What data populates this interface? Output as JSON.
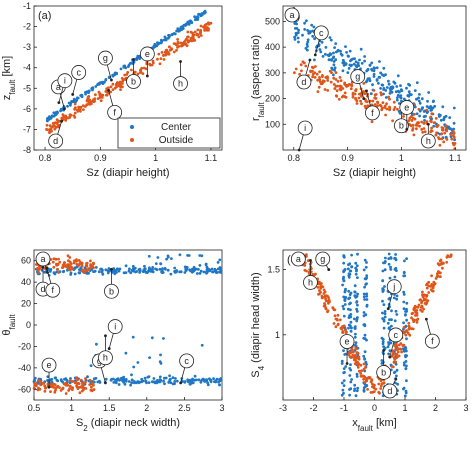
{
  "colors": {
    "center": "#1f77c4",
    "outside": "#e0561a"
  },
  "chart_data": [
    {
      "id": "a",
      "type": "scatter",
      "panel_label": "(a)",
      "xlabel": "Sz (diapir height)",
      "ylabel": "z_fault [km]",
      "ylabel_main": "z",
      "ylabel_sub": "fault",
      "ylabel_unit": " [km]",
      "xlim": [
        0.78,
        1.12
      ],
      "ylim": [
        -8,
        -1
      ],
      "xticks": [
        0.8,
        0.9,
        1.0,
        1.1
      ],
      "xticklabels": [
        "0.8",
        "0.9",
        "1",
        "1.1"
      ],
      "yticks": [
        -8,
        -7,
        -6,
        -5,
        -4,
        -3,
        -2,
        -1
      ],
      "yticklabels": [
        "-8",
        "-7",
        "-6",
        "-5",
        "-4",
        "-3",
        "-2",
        "-1"
      ],
      "legend": {
        "position": "bottom-right",
        "entries": [
          "Center",
          "Outside"
        ]
      },
      "series": [
        {
          "name": "Center",
          "color_key": "center",
          "trend": [
            [
              0.8,
              -6.6
            ],
            [
              1.1,
              -1.1
            ]
          ],
          "spread": 0.08,
          "n": 220
        },
        {
          "name": "Outside",
          "color_key": "outside",
          "trend": [
            [
              0.8,
              -7.1
            ],
            [
              1.1,
              -1.9
            ]
          ],
          "spread": 0.25,
          "n": 260
        }
      ],
      "annotations": [
        {
          "letter": "a",
          "x": 0.835,
          "y": -6.0
        },
        {
          "letter": "b",
          "x": 0.96,
          "y": -3.6
        },
        {
          "letter": "c",
          "x": 0.85,
          "y": -5.3
        },
        {
          "letter": "d",
          "x": 0.83,
          "y": -6.6
        },
        {
          "letter": "e",
          "x": 0.985,
          "y": -4.4
        },
        {
          "letter": "f",
          "x": 0.915,
          "y": -5.1
        },
        {
          "letter": "g",
          "x": 0.92,
          "y": -4.6
        },
        {
          "letter": "h",
          "x": 1.045,
          "y": -3.7
        },
        {
          "letter": "i",
          "x": 0.825,
          "y": -5.7
        }
      ]
    },
    {
      "id": "b",
      "type": "scatter",
      "panel_label": "(b)",
      "xlabel": "Sz (diapir height)",
      "ylabel": "r_fault (aspect ratio)",
      "ylabel_main": "r",
      "ylabel_sub": "fault",
      "ylabel_unit": " (aspect ratio)",
      "xlim": [
        0.78,
        1.12
      ],
      "ylim": [
        0,
        560
      ],
      "xticks": [
        0.8,
        0.9,
        1.0,
        1.1
      ],
      "xticklabels": [
        "0.8",
        "0.9",
        "1",
        "1.1"
      ],
      "yticks": [
        100,
        200,
        300,
        400,
        500
      ],
      "yticklabels": [
        "100",
        "200",
        "300",
        "400",
        "500"
      ],
      "series": [
        {
          "name": "Center",
          "color_key": "center",
          "trend": [
            [
              0.8,
              470
            ],
            [
              1.1,
              90
            ]
          ],
          "spread": 55,
          "n": 300
        },
        {
          "name": "Outside",
          "color_key": "outside",
          "trend": [
            [
              0.8,
              320
            ],
            [
              1.1,
              40
            ]
          ],
          "spread": 45,
          "n": 260
        }
      ],
      "annotations": [
        {
          "letter": "a",
          "x": 0.8,
          "y": 550
        },
        {
          "letter": "b",
          "x": 1.0,
          "y": 180
        },
        {
          "letter": "c",
          "x": 0.84,
          "y": 370
        },
        {
          "letter": "d",
          "x": 0.83,
          "y": 350
        },
        {
          "letter": "e",
          "x": 1.01,
          "y": 80
        },
        {
          "letter": "f",
          "x": 0.935,
          "y": 230
        },
        {
          "letter": "g",
          "x": 0.93,
          "y": 200
        },
        {
          "letter": "h",
          "x": 1.05,
          "y": 100
        },
        {
          "letter": "i",
          "x": 0.81,
          "y": 0
        }
      ]
    },
    {
      "id": "c",
      "type": "scatter",
      "panel_label": "(c)",
      "xlabel": "S_2 (diapir neck width)",
      "xlabel_main": "S",
      "xlabel_sub": "2",
      "xlabel_rest": " (diapir neck width)",
      "ylabel": "θ_fault",
      "ylabel_main": "θ",
      "ylabel_sub": "fault",
      "ylabel_unit": "",
      "xlim": [
        0.5,
        3
      ],
      "ylim": [
        -70,
        70
      ],
      "xticks": [
        0.5,
        1,
        1.5,
        2,
        2.5,
        3
      ],
      "xticklabels": [
        "0.5",
        "1",
        "1.5",
        "2",
        "2.5",
        "3"
      ],
      "yticks": [
        -60,
        -40,
        -20,
        0,
        20,
        40,
        60
      ],
      "yticklabels": [
        "-60",
        "-40",
        "-20",
        "0",
        "20",
        "40",
        "60"
      ],
      "series": [
        {
          "name": "Center",
          "color_key": "center",
          "bands": [
            [
              0.5,
              3,
              51,
              3
            ],
            [
              0.5,
              3,
              -52,
              3
            ]
          ],
          "n": 420
        },
        {
          "name": "Outside",
          "color_key": "outside",
          "bands": [
            [
              0.5,
              1.3,
              56,
              6
            ],
            [
              0.5,
              1.3,
              -57,
              5
            ]
          ],
          "n": 200
        }
      ],
      "annotations": [
        {
          "letter": "a",
          "x": 0.68,
          "y": 49
        },
        {
          "letter": "b",
          "x": 1.53,
          "y": 52
        },
        {
          "letter": "c",
          "x": 2.45,
          "y": -54
        },
        {
          "letter": "d",
          "x": 0.62,
          "y": 54
        },
        {
          "letter": "e",
          "x": 0.7,
          "y": -58
        },
        {
          "letter": "f",
          "x": 0.67,
          "y": 53
        },
        {
          "letter": "g",
          "x": 1.45,
          "y": -54
        },
        {
          "letter": "h",
          "x": 1.45,
          "y": -10
        },
        {
          "letter": "i",
          "x": 1.5,
          "y": -22
        }
      ]
    },
    {
      "id": "d",
      "type": "scatter",
      "panel_label": "(d)",
      "xlabel": "x_fault [km]",
      "xlabel_main": "x",
      "xlabel_sub": "fault",
      "xlabel_rest": " [km]",
      "ylabel": "S_4 (diapir head width)",
      "ylabel_main": "S",
      "ylabel_sub": "4",
      "ylabel_unit": " (diapir head width)",
      "xlim": [
        -3,
        3
      ],
      "ylim": [
        0.5,
        1.65
      ],
      "xticks": [
        -3,
        -2,
        -1,
        0,
        1,
        2,
        3
      ],
      "xticklabels": [
        "-3",
        "-2",
        "-1",
        "0",
        "1",
        "2",
        "3"
      ],
      "yticks": [
        1,
        1.5
      ],
      "yticklabels": [
        "1",
        "1.5"
      ],
      "series": [
        {
          "name": "Center",
          "color_key": "center",
          "columns": [
            -1.0,
            -0.8,
            -0.6,
            -0.3,
            0.3,
            0.5,
            0.7,
            1.0
          ],
          "n": 380
        },
        {
          "name": "Outside",
          "color_key": "outside",
          "vee": {
            "apex": [
              0,
              0.55
            ],
            "top_left": -2.4,
            "top_right": 2.4
          },
          "n": 360
        }
      ],
      "annotations": [
        {
          "letter": "a",
          "x": -2.3,
          "y": 1.6
        },
        {
          "letter": "b",
          "x": 0.3,
          "y": 0.88
        },
        {
          "letter": "c",
          "x": 0.5,
          "y": 0.83
        },
        {
          "letter": "d",
          "x": 0.7,
          "y": 0.66
        },
        {
          "letter": "e",
          "x": -0.9,
          "y": 0.78
        },
        {
          "letter": "f",
          "x": 1.7,
          "y": 1.12
        },
        {
          "letter": "g",
          "x": -1.5,
          "y": 1.5
        },
        {
          "letter": "h",
          "x": -2.1,
          "y": 1.57
        },
        {
          "letter": "j",
          "x": 0.45,
          "y": 1.2
        }
      ]
    }
  ]
}
